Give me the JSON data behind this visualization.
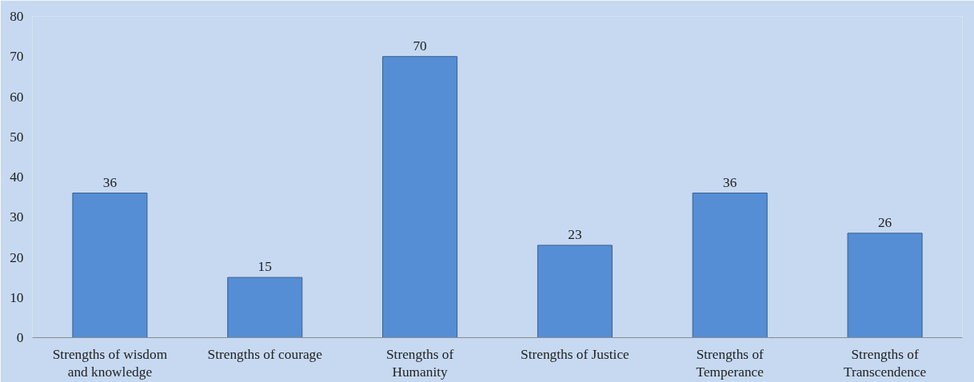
{
  "chart_data": {
    "type": "bar",
    "categories": [
      "Strengths of wisdom and knowledge",
      "Strengths of courage",
      "Strengths of Humanity",
      "Strengths of Justice",
      "Strengths of Temperance",
      "Strengths of Transcendence"
    ],
    "values": [
      36,
      15,
      70,
      23,
      36,
      26
    ],
    "color": "#558ed5",
    "ylim": [
      0,
      80
    ],
    "yticks": [
      0,
      10,
      20,
      30,
      40,
      50,
      60,
      70,
      80
    ],
    "grid": false,
    "data_labels": true
  }
}
